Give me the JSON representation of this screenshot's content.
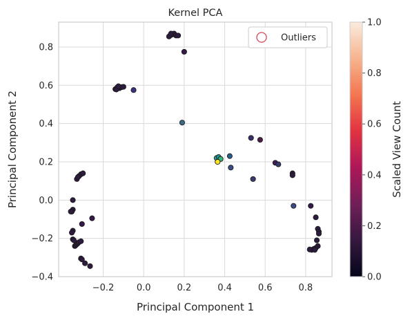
{
  "chart_data": {
    "type": "scatter",
    "title": "Kernel PCA",
    "xlabel": "Principal Component 1",
    "ylabel": "Principal Component 2",
    "xlim": [
      -0.42,
      0.93
    ],
    "ylim": [
      -0.4,
      0.93
    ],
    "xticks": [
      "−0.2",
      "0.0",
      "0.2",
      "0.4",
      "0.6",
      "0.8"
    ],
    "xtick_values": [
      -0.2,
      0.0,
      0.2,
      0.4,
      0.6,
      0.8
    ],
    "yticks": [
      "−0.4",
      "−0.2",
      "0.0",
      "0.2",
      "0.4",
      "0.6",
      "0.8"
    ],
    "ytick_values": [
      -0.4,
      -0.2,
      0.0,
      0.2,
      0.4,
      0.6,
      0.8
    ],
    "grid": true,
    "legend": {
      "position": "top-right",
      "entries": [
        "Outliers"
      ],
      "marker_color": "#d1495b"
    },
    "colorbar": {
      "label": "Scaled View Count",
      "range": [
        0.0,
        1.0
      ],
      "ticks": [
        "0.0",
        "0.2",
        "0.4",
        "0.6",
        "0.8",
        "1.0"
      ],
      "tick_values": [
        0.0,
        0.2,
        0.4,
        0.6,
        0.8,
        1.0
      ],
      "colormap": "rocket",
      "stops": [
        "#03051a",
        "#35193e",
        "#701f57",
        "#ad1759",
        "#e13342",
        "#f37651",
        "#f6b48f",
        "#faebdd"
      ]
    },
    "points": [
      {
        "x": 0.13,
        "y": 0.86,
        "color": "#2d1b40"
      },
      {
        "x": 0.14,
        "y": 0.865,
        "color": "#2d1b40"
      },
      {
        "x": 0.15,
        "y": 0.87,
        "color": "#2d1b40"
      },
      {
        "x": 0.16,
        "y": 0.86,
        "color": "#2d1b40"
      },
      {
        "x": 0.125,
        "y": 0.855,
        "color": "#2d1b40"
      },
      {
        "x": 0.17,
        "y": 0.86,
        "color": "#2d1b40"
      },
      {
        "x": 0.135,
        "y": 0.87,
        "color": "#2d1b40"
      },
      {
        "x": 0.2,
        "y": 0.775,
        "color": "#35194a"
      },
      {
        "x": -0.14,
        "y": 0.58,
        "color": "#2d1b40"
      },
      {
        "x": -0.13,
        "y": 0.59,
        "color": "#2d1b40"
      },
      {
        "x": -0.12,
        "y": 0.585,
        "color": "#2d1b40"
      },
      {
        "x": -0.11,
        "y": 0.59,
        "color": "#2d1b40"
      },
      {
        "x": -0.1,
        "y": 0.592,
        "color": "#2d1b40"
      },
      {
        "x": -0.135,
        "y": 0.578,
        "color": "#2d1b40"
      },
      {
        "x": -0.125,
        "y": 0.595,
        "color": "#2d1b40"
      },
      {
        "x": -0.05,
        "y": 0.575,
        "color": "#3a3380"
      },
      {
        "x": 0.19,
        "y": 0.405,
        "color": "#3b6b86"
      },
      {
        "x": 0.53,
        "y": 0.325,
        "color": "#37306e"
      },
      {
        "x": 0.575,
        "y": 0.315,
        "color": "#4a1d4a"
      },
      {
        "x": 0.36,
        "y": 0.22,
        "color": "#2ca39a"
      },
      {
        "x": 0.37,
        "y": 0.225,
        "color": "#21918c"
      },
      {
        "x": 0.38,
        "y": 0.215,
        "color": "#35b779"
      },
      {
        "x": 0.365,
        "y": 0.2,
        "color": "#fde725"
      },
      {
        "x": 0.425,
        "y": 0.23,
        "color": "#2c5f8a"
      },
      {
        "x": 0.43,
        "y": 0.17,
        "color": "#3b4d88"
      },
      {
        "x": 0.54,
        "y": 0.11,
        "color": "#3a3a6e"
      },
      {
        "x": 0.65,
        "y": 0.195,
        "color": "#3e1f55"
      },
      {
        "x": 0.665,
        "y": 0.187,
        "color": "#3a3a6e"
      },
      {
        "x": 0.735,
        "y": 0.14,
        "color": "#2d1b40"
      },
      {
        "x": 0.735,
        "y": 0.13,
        "color": "#2d1b40"
      },
      {
        "x": 0.74,
        "y": -0.03,
        "color": "#3c4a86"
      },
      {
        "x": -0.31,
        "y": 0.135,
        "color": "#2d1b40"
      },
      {
        "x": -0.32,
        "y": 0.125,
        "color": "#2d1b40"
      },
      {
        "x": -0.3,
        "y": 0.14,
        "color": "#2d1b40"
      },
      {
        "x": -0.33,
        "y": 0.11,
        "color": "#2d1b40"
      },
      {
        "x": -0.325,
        "y": 0.12,
        "color": "#2d1b40"
      },
      {
        "x": -0.35,
        "y": 0.0,
        "color": "#2d1b40"
      },
      {
        "x": -0.35,
        "y": -0.05,
        "color": "#2d1b40"
      },
      {
        "x": -0.355,
        "y": -0.06,
        "color": "#2d1b40"
      },
      {
        "x": -0.36,
        "y": -0.06,
        "color": "#2d1b40"
      },
      {
        "x": -0.255,
        "y": -0.095,
        "color": "#35194a"
      },
      {
        "x": -0.305,
        "y": -0.125,
        "color": "#35194a"
      },
      {
        "x": -0.35,
        "y": -0.16,
        "color": "#2d1b40"
      },
      {
        "x": -0.355,
        "y": -0.17,
        "color": "#2d1b40"
      },
      {
        "x": -0.35,
        "y": -0.205,
        "color": "#2d1b40"
      },
      {
        "x": -0.345,
        "y": -0.21,
        "color": "#2d1b40"
      },
      {
        "x": -0.34,
        "y": -0.24,
        "color": "#2d1b40"
      },
      {
        "x": -0.335,
        "y": -0.235,
        "color": "#2d1b40"
      },
      {
        "x": -0.33,
        "y": -0.23,
        "color": "#2d1b40"
      },
      {
        "x": -0.325,
        "y": -0.225,
        "color": "#2d1b40"
      },
      {
        "x": -0.32,
        "y": -0.22,
        "color": "#2d1b40"
      },
      {
        "x": -0.31,
        "y": -0.215,
        "color": "#2d1b40"
      },
      {
        "x": -0.31,
        "y": -0.305,
        "color": "#2d1b40"
      },
      {
        "x": -0.305,
        "y": -0.31,
        "color": "#2d1b40"
      },
      {
        "x": -0.29,
        "y": -0.33,
        "color": "#2d1b40"
      },
      {
        "x": -0.265,
        "y": -0.345,
        "color": "#2d1b40"
      },
      {
        "x": 0.825,
        "y": -0.03,
        "color": "#35194a"
      },
      {
        "x": 0.85,
        "y": -0.09,
        "color": "#2d1b40"
      },
      {
        "x": 0.86,
        "y": -0.15,
        "color": "#2d1b40"
      },
      {
        "x": 0.865,
        "y": -0.165,
        "color": "#2d1b40"
      },
      {
        "x": 0.865,
        "y": -0.175,
        "color": "#2d1b40"
      },
      {
        "x": 0.855,
        "y": -0.21,
        "color": "#2d1b40"
      },
      {
        "x": 0.86,
        "y": -0.24,
        "color": "#2d1b40"
      },
      {
        "x": 0.85,
        "y": -0.25,
        "color": "#2d1b40"
      },
      {
        "x": 0.84,
        "y": -0.255,
        "color": "#2d1b40"
      },
      {
        "x": 0.83,
        "y": -0.26,
        "color": "#2d1b40"
      },
      {
        "x": 0.82,
        "y": -0.258,
        "color": "#2d1b40"
      },
      {
        "x": 0.845,
        "y": -0.26,
        "color": "#2d1b40"
      }
    ]
  }
}
